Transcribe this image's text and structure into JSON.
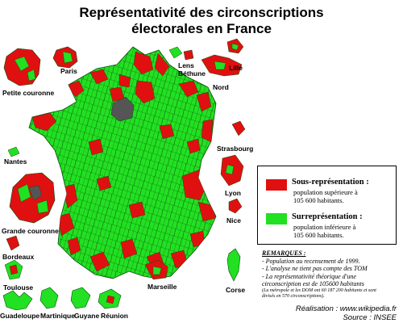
{
  "title": [
    "Représentativité des circonscriptions",
    "électorales en France"
  ],
  "colors": {
    "over": "#22e022",
    "under": "#e01010",
    "unknown": "#555555",
    "border": "#0c4a0c"
  },
  "places": {
    "paris": "Paris",
    "petite_couronne": "Petite couronne",
    "lens": [
      "Lens",
      "Béthune"
    ],
    "lille": "Lille",
    "nord": "Nord",
    "strasbourg": "Strasbourg",
    "nantes": "Nantes",
    "lyon": "Lyon",
    "nice": "Nice",
    "grande_couronne": "Grande couronne",
    "bordeaux": "Bordeaux",
    "toulouse": "Toulouse",
    "marseille": "Marseille",
    "corse": "Corse",
    "guadeloupe": "Guadeloupe",
    "martinique": "Martinique",
    "guyane": "Guyane",
    "reunion": "Réunion"
  },
  "legend": {
    "under_title": "Sous-représentation :",
    "under_desc": [
      "population supérieure à",
      "105 600 habitants."
    ],
    "over_title": "Surreprésentation :",
    "over_desc": [
      "population inférieure à",
      "105 600 habitants."
    ]
  },
  "remarks": {
    "heading": "REMARQUES :",
    "lines": [
      "- Population au recensement de 1999.",
      "- L'analyse ne tient pas compte des TOM",
      "- La représentativité théorique d'une",
      "circonscription est de 105600 habitants"
    ],
    "small": [
      "(La métropole et les DOM ont 60 187 200 habitants et sont",
      "divisés en 570 circonscriptions)."
    ]
  },
  "credits": [
    "Réalisation : www.wikipedia.fr",
    "Source : INSEE"
  ]
}
